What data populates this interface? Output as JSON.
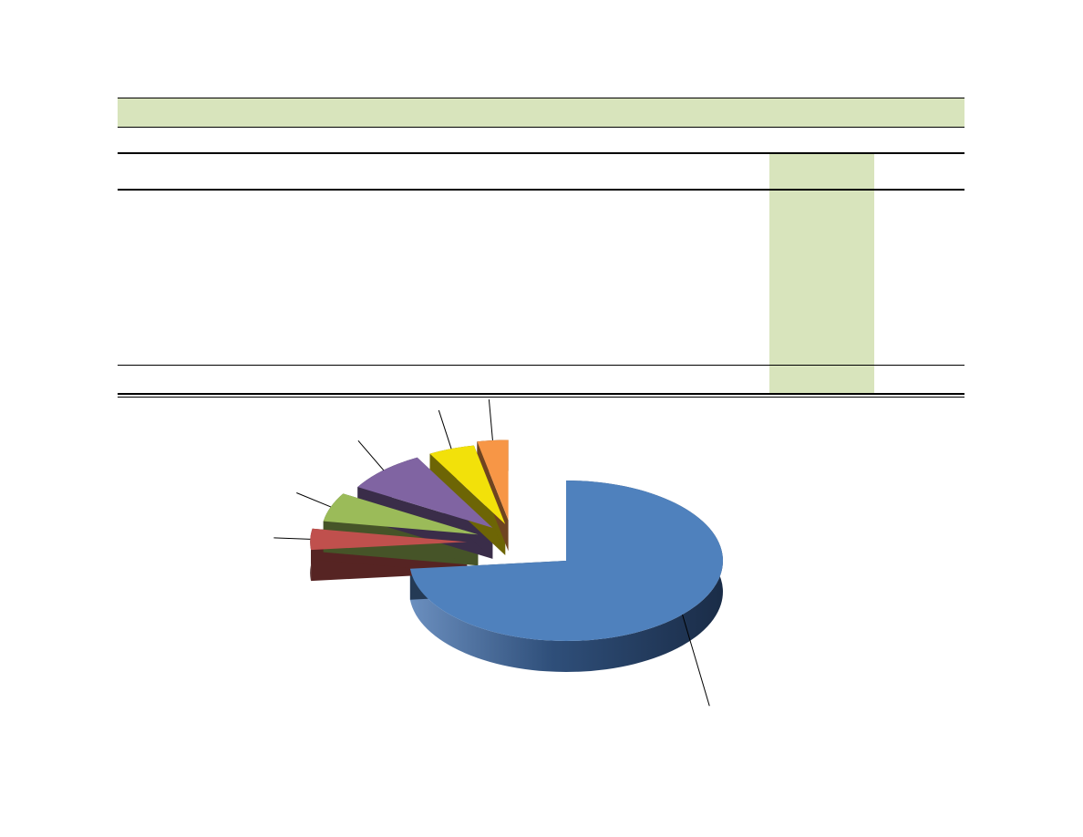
{
  "page": {
    "title": "",
    "subtitle": "",
    "header_fill": "#d8e4bc"
  },
  "table": {
    "columns": [],
    "rows": [],
    "total_row": []
  },
  "chart_data": {
    "type": "pie",
    "style": "3d-exploded",
    "title": "",
    "categories": [
      "",
      "",
      "",
      "",
      "",
      ""
    ],
    "values": [
      69,
      4,
      5.5,
      8,
      4.5,
      3
    ],
    "colors": [
      "#4f81bd",
      "#c0504d",
      "#9bbb59",
      "#8064a2",
      "#f2e10a",
      "#f79646"
    ],
    "data_labels": [
      "",
      "",
      "",
      "",
      "",
      ""
    ],
    "legend": "none"
  }
}
